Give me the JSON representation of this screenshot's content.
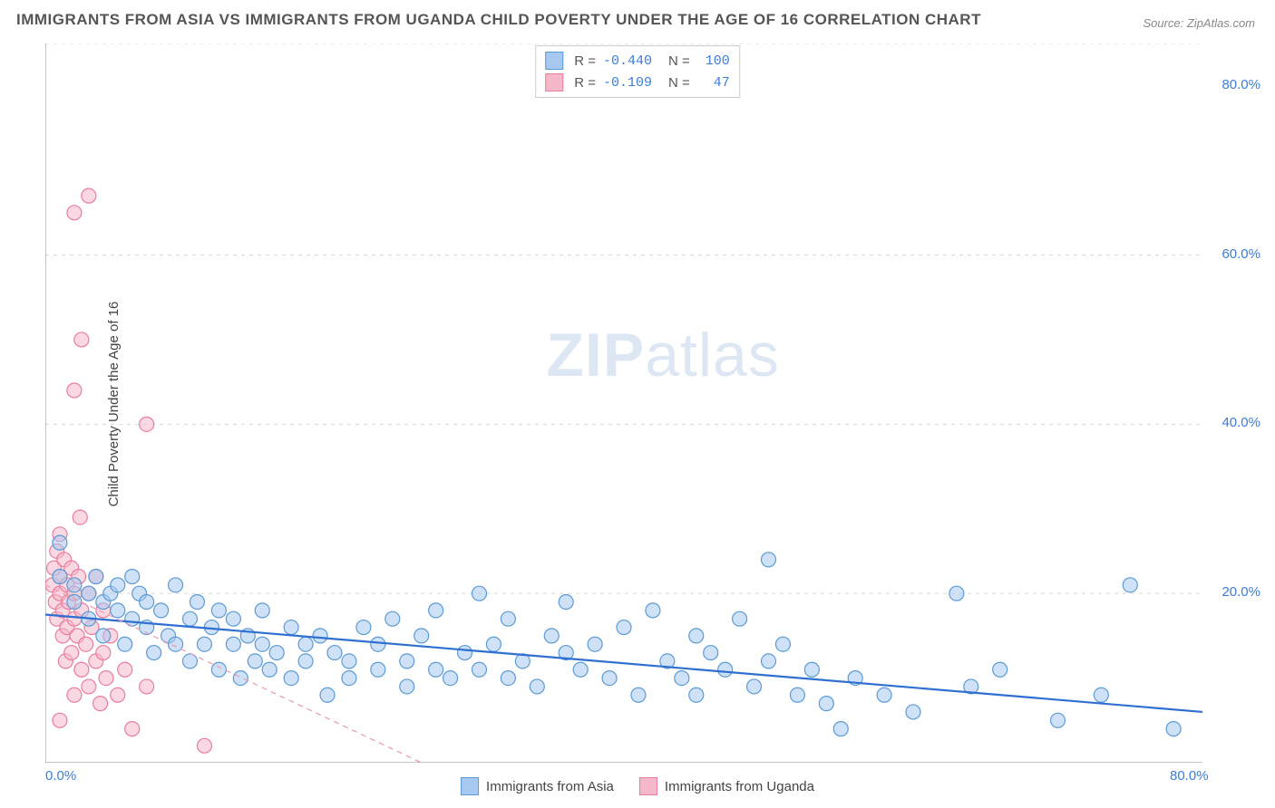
{
  "title": "IMMIGRANTS FROM ASIA VS IMMIGRANTS FROM UGANDA CHILD POVERTY UNDER THE AGE OF 16 CORRELATION CHART",
  "source": "Source: ZipAtlas.com",
  "watermark_bold": "ZIP",
  "watermark_light": "atlas",
  "y_axis_label": "Child Poverty Under the Age of 16",
  "chart": {
    "type": "scatter",
    "background_color": "#ffffff",
    "grid_color": "#d8d8d8",
    "axis_line_color": "#888888",
    "xlim": [
      0,
      80
    ],
    "ylim": [
      0,
      85
    ],
    "x_ticks": [
      {
        "v": 0,
        "label": "0.0%"
      },
      {
        "v": 80,
        "label": "80.0%"
      }
    ],
    "y_ticks": [
      {
        "v": 20,
        "label": "20.0%"
      },
      {
        "v": 40,
        "label": "40.0%"
      },
      {
        "v": 60,
        "label": "60.0%"
      },
      {
        "v": 80,
        "label": "80.0%"
      }
    ],
    "grid_y": [
      20,
      40,
      60,
      85
    ],
    "marker_radius": 8,
    "marker_opacity": 0.55,
    "series": [
      {
        "name": "Immigrants from Asia",
        "color_fill": "#a7c8f0",
        "color_stroke": "#5b9bd5",
        "R": "-0.440",
        "N": "100",
        "trend": {
          "x1": 0,
          "y1": 17.5,
          "x2": 80,
          "y2": 6,
          "stroke": "#2e6fd1",
          "width": 2.2,
          "dash": "none"
        },
        "points": [
          [
            1,
            26
          ],
          [
            1,
            22
          ],
          [
            2,
            19
          ],
          [
            2,
            21
          ],
          [
            3,
            20
          ],
          [
            3,
            17
          ],
          [
            3.5,
            22
          ],
          [
            4,
            19
          ],
          [
            4,
            15
          ],
          [
            4.5,
            20
          ],
          [
            5,
            18
          ],
          [
            5,
            21
          ],
          [
            5.5,
            14
          ],
          [
            6,
            22
          ],
          [
            6,
            17
          ],
          [
            6.5,
            20
          ],
          [
            7,
            16
          ],
          [
            7,
            19
          ],
          [
            7.5,
            13
          ],
          [
            8,
            18
          ],
          [
            8.5,
            15
          ],
          [
            9,
            21
          ],
          [
            9,
            14
          ],
          [
            10,
            17
          ],
          [
            10,
            12
          ],
          [
            10.5,
            19
          ],
          [
            11,
            14
          ],
          [
            11.5,
            16
          ],
          [
            12,
            11
          ],
          [
            12,
            18
          ],
          [
            13,
            14
          ],
          [
            13,
            17
          ],
          [
            13.5,
            10
          ],
          [
            14,
            15
          ],
          [
            14.5,
            12
          ],
          [
            15,
            14
          ],
          [
            15,
            18
          ],
          [
            15.5,
            11
          ],
          [
            16,
            13
          ],
          [
            17,
            16
          ],
          [
            17,
            10
          ],
          [
            18,
            14
          ],
          [
            18,
            12
          ],
          [
            19,
            15
          ],
          [
            19.5,
            8
          ],
          [
            20,
            13
          ],
          [
            21,
            12
          ],
          [
            21,
            10
          ],
          [
            22,
            16
          ],
          [
            23,
            11
          ],
          [
            23,
            14
          ],
          [
            24,
            17
          ],
          [
            25,
            12
          ],
          [
            25,
            9
          ],
          [
            26,
            15
          ],
          [
            27,
            11
          ],
          [
            27,
            18
          ],
          [
            28,
            10
          ],
          [
            29,
            13
          ],
          [
            30,
            11
          ],
          [
            30,
            20
          ],
          [
            31,
            14
          ],
          [
            32,
            10
          ],
          [
            32,
            17
          ],
          [
            33,
            12
          ],
          [
            34,
            9
          ],
          [
            35,
            15
          ],
          [
            36,
            13
          ],
          [
            36,
            19
          ],
          [
            37,
            11
          ],
          [
            38,
            14
          ],
          [
            39,
            10
          ],
          [
            40,
            16
          ],
          [
            41,
            8
          ],
          [
            42,
            18
          ],
          [
            43,
            12
          ],
          [
            44,
            10
          ],
          [
            45,
            15
          ],
          [
            45,
            8
          ],
          [
            46,
            13
          ],
          [
            47,
            11
          ],
          [
            48,
            17
          ],
          [
            49,
            9
          ],
          [
            50,
            12
          ],
          [
            50,
            24
          ],
          [
            51,
            14
          ],
          [
            52,
            8
          ],
          [
            53,
            11
          ],
          [
            54,
            7
          ],
          [
            55,
            4
          ],
          [
            56,
            10
          ],
          [
            58,
            8
          ],
          [
            60,
            6
          ],
          [
            63,
            20
          ],
          [
            64,
            9
          ],
          [
            66,
            11
          ],
          [
            70,
            5
          ],
          [
            73,
            8
          ],
          [
            75,
            21
          ],
          [
            78,
            4
          ]
        ]
      },
      {
        "name": "Immigrants from Uganda",
        "color_fill": "#f5b8c8",
        "color_stroke": "#e87da0",
        "R": "-0.109",
        "N": "47",
        "trend": {
          "x1": 0,
          "y1": 21,
          "x2": 26,
          "y2": 0,
          "stroke": "#e8a0b8",
          "width": 1.3,
          "dash": "6 5"
        },
        "points": [
          [
            0.5,
            21
          ],
          [
            0.6,
            23
          ],
          [
            0.7,
            19
          ],
          [
            0.8,
            25
          ],
          [
            0.8,
            17
          ],
          [
            1,
            22
          ],
          [
            1,
            20
          ],
          [
            1,
            27
          ],
          [
            1.2,
            18
          ],
          [
            1.2,
            15
          ],
          [
            1.3,
            24
          ],
          [
            1.4,
            12
          ],
          [
            1.5,
            21
          ],
          [
            1.5,
            16
          ],
          [
            1.6,
            19
          ],
          [
            1.8,
            13
          ],
          [
            1.8,
            23
          ],
          [
            2,
            17
          ],
          [
            2,
            20
          ],
          [
            2,
            8
          ],
          [
            2.2,
            15
          ],
          [
            2.3,
            22
          ],
          [
            2.4,
            29
          ],
          [
            2.5,
            11
          ],
          [
            2.5,
            18
          ],
          [
            2.8,
            14
          ],
          [
            3,
            20
          ],
          [
            3,
            9
          ],
          [
            3.2,
            16
          ],
          [
            3.5,
            12
          ],
          [
            3.5,
            22
          ],
          [
            3.8,
            7
          ],
          [
            4,
            18
          ],
          [
            4,
            13
          ],
          [
            4.2,
            10
          ],
          [
            4.5,
            15
          ],
          [
            5,
            8
          ],
          [
            5.5,
            11
          ],
          [
            6,
            4
          ],
          [
            7,
            9
          ],
          [
            2,
            44
          ],
          [
            2.5,
            50
          ],
          [
            2,
            65
          ],
          [
            3,
            67
          ],
          [
            7,
            40
          ],
          [
            11,
            2
          ],
          [
            1,
            5
          ]
        ]
      }
    ]
  },
  "legend_top": [
    {
      "swatch_fill": "#a7c8f0",
      "swatch_stroke": "#5b9bd5",
      "r_label": "R =",
      "r_val": "-0.440",
      "n_label": "N =",
      "n_val": "100"
    },
    {
      "swatch_fill": "#f5b8c8",
      "swatch_stroke": "#e87da0",
      "r_label": "R =",
      "r_val": "-0.109",
      "n_label": "N =",
      "n_val": "47"
    }
  ],
  "legend_bottom": [
    {
      "swatch_fill": "#a7c8f0",
      "swatch_stroke": "#5b9bd5",
      "label": "Immigrants from Asia"
    },
    {
      "swatch_fill": "#f5b8c8",
      "swatch_stroke": "#e87da0",
      "label": "Immigrants from Uganda"
    }
  ]
}
